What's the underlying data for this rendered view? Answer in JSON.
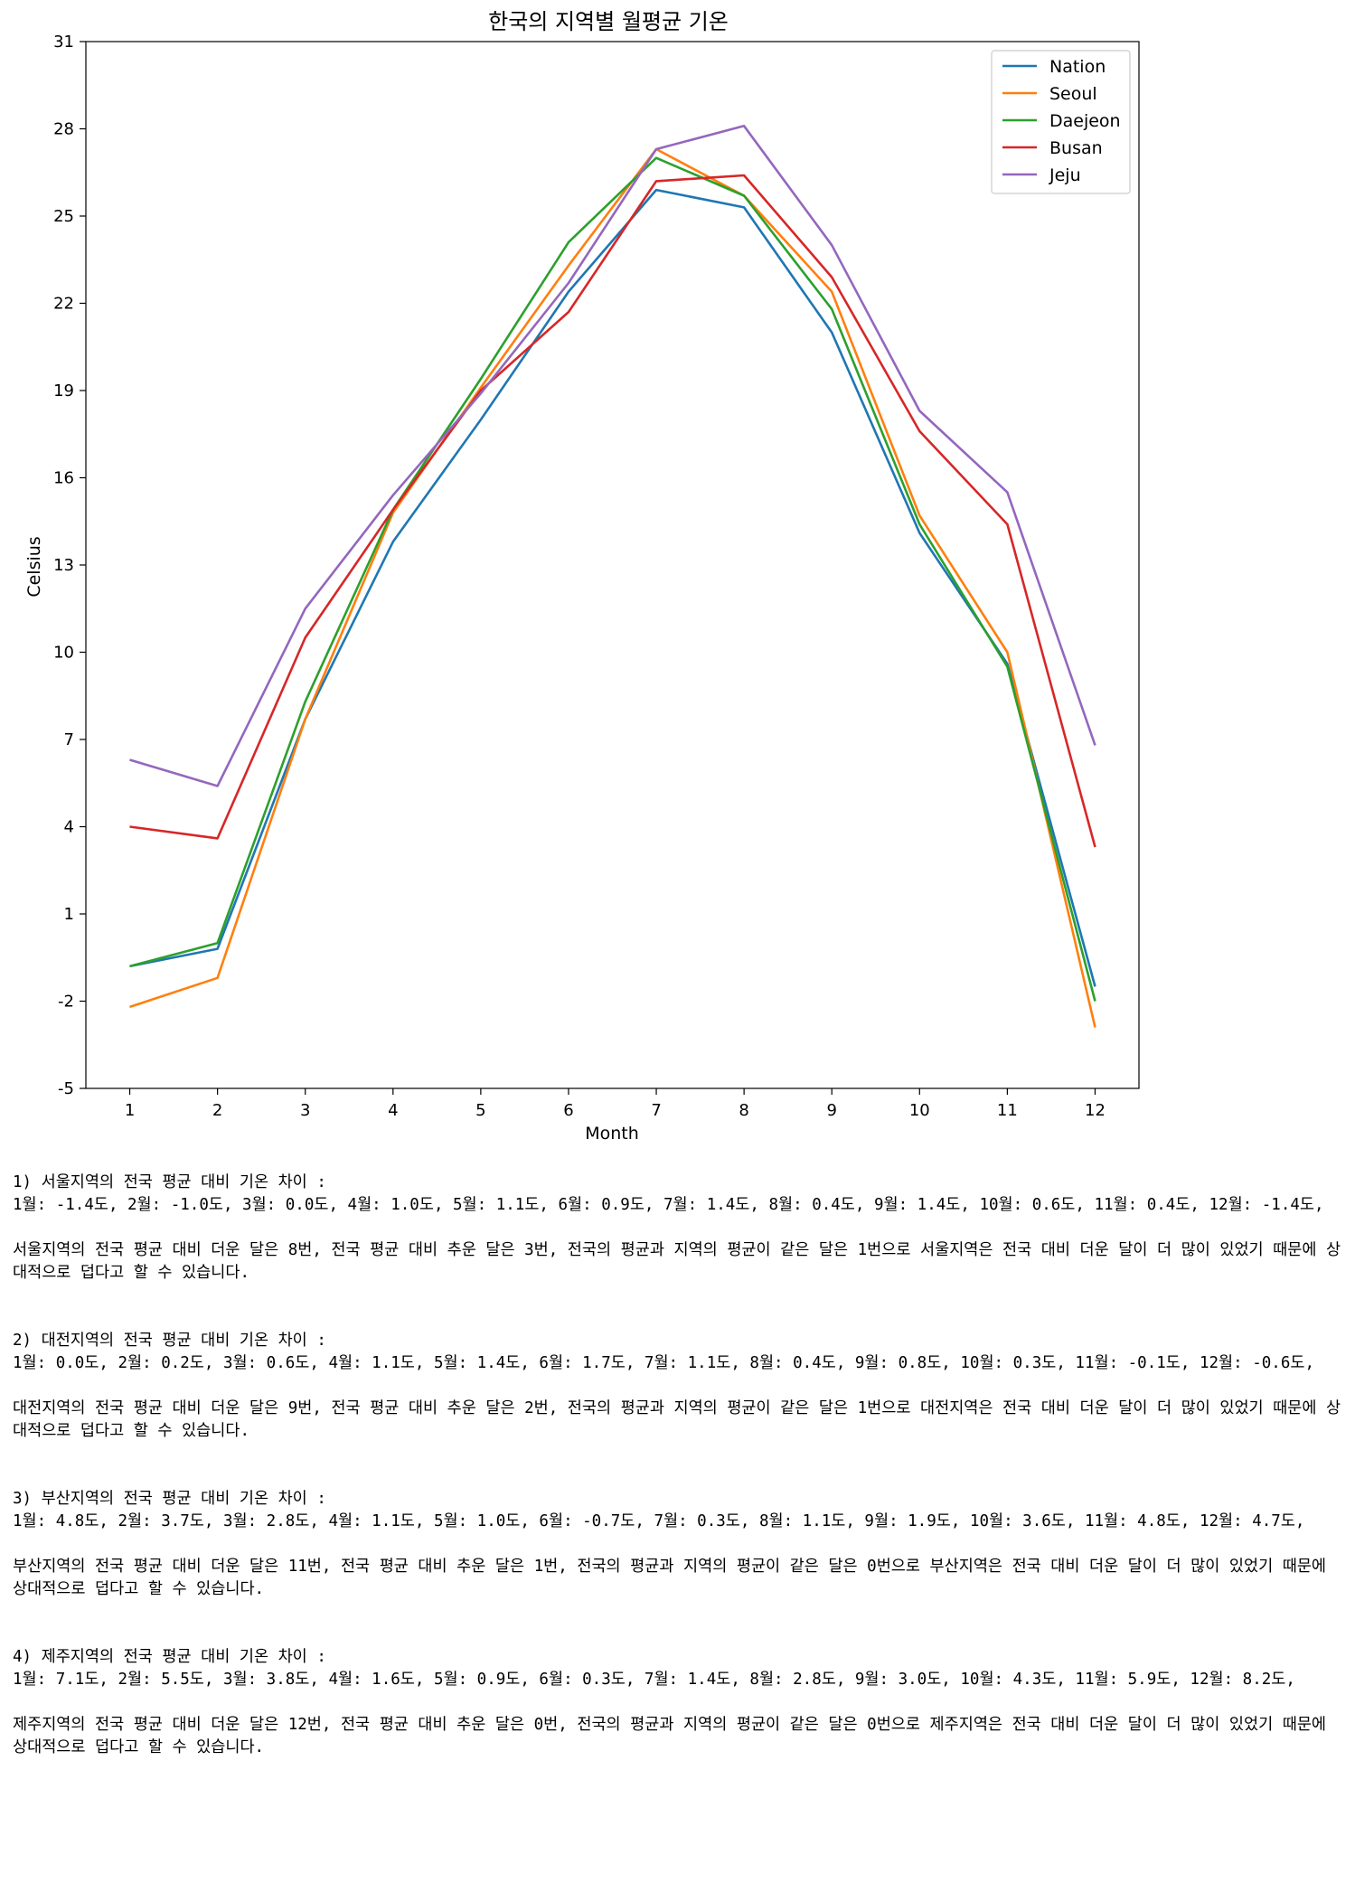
{
  "chart_data": {
    "type": "line",
    "title": "한국의 지역별 월평균 기온",
    "xlabel": "Month",
    "ylabel": "Celsius",
    "x": [
      1,
      2,
      3,
      4,
      5,
      6,
      7,
      8,
      9,
      10,
      11,
      12
    ],
    "xlim": [
      0.5,
      12.5
    ],
    "ylim": [
      -5,
      31
    ],
    "yticks": [
      -5,
      -2,
      1,
      4,
      7,
      10,
      13,
      16,
      19,
      22,
      25,
      28,
      31
    ],
    "xticks": [
      1,
      2,
      3,
      4,
      5,
      6,
      7,
      8,
      9,
      10,
      11,
      12
    ],
    "grid": false,
    "legend_position": "top-right",
    "series": [
      {
        "name": "Nation",
        "color": "#1f77b4",
        "values": [
          -0.8,
          -0.2,
          7.7,
          13.8,
          18.0,
          22.4,
          25.9,
          25.3,
          21.0,
          14.1,
          9.6,
          -1.5
        ]
      },
      {
        "name": "Seoul",
        "color": "#ff7f0e",
        "values": [
          -2.2,
          -1.2,
          7.7,
          14.8,
          19.1,
          23.3,
          27.3,
          25.7,
          22.4,
          14.7,
          10.0,
          -2.9
        ]
      },
      {
        "name": "Daejeon",
        "color": "#2ca02c",
        "values": [
          -0.8,
          0.0,
          8.3,
          14.9,
          19.4,
          24.1,
          27.0,
          25.7,
          21.8,
          14.4,
          9.5,
          -2.0
        ]
      },
      {
        "name": "Busan",
        "color": "#d62728",
        "values": [
          4.0,
          3.6,
          10.5,
          14.9,
          19.0,
          21.7,
          26.2,
          26.4,
          22.9,
          17.6,
          14.4,
          3.3
        ]
      },
      {
        "name": "Jeju",
        "color": "#9467bd",
        "values": [
          6.3,
          5.4,
          11.5,
          15.4,
          18.9,
          22.7,
          27.3,
          28.1,
          24.0,
          18.3,
          15.5,
          6.8
        ]
      }
    ]
  },
  "analysis": [
    {
      "title": "1) 서울지역의 전국 평균 대비 기온 차이 :",
      "values": "1월: -1.4도, 2월: -1.0도, 3월: 0.0도, 4월: 1.0도, 5월: 1.1도, 6월: 0.9도, 7월: 1.4도, 8월: 0.4도, 9월: 1.4도, 10월: 0.6도, 11월: 0.4도, 12월: -1.4도,",
      "summary": "서울지역의 전국 평균 대비 더운 달은 8번, 전국 평균 대비 추운 달은 3번, 전국의 평균과 지역의 평균이 같은 달은 1번으로 서울지역은 전국 대비 더운 달이 더 많이 있었기 때문에 상대적으로 덥다고 할 수 있습니다."
    },
    {
      "title": "2) 대전지역의 전국 평균 대비 기온 차이 :",
      "values": "1월: 0.0도, 2월: 0.2도, 3월: 0.6도, 4월: 1.1도, 5월: 1.4도, 6월: 1.7도, 7월: 1.1도, 8월: 0.4도, 9월: 0.8도, 10월: 0.3도, 11월: -0.1도, 12월: -0.6도,",
      "summary": "대전지역의 전국 평균 대비 더운 달은 9번, 전국 평균 대비 추운 달은 2번, 전국의 평균과 지역의 평균이 같은 달은 1번으로 대전지역은 전국 대비 더운 달이 더 많이 있었기 때문에 상대적으로 덥다고 할 수 있습니다."
    },
    {
      "title": "3) 부산지역의 전국 평균 대비 기온 차이 :",
      "values": "1월: 4.8도, 2월: 3.7도, 3월: 2.8도, 4월: 1.1도, 5월: 1.0도, 6월: -0.7도, 7월: 0.3도, 8월: 1.1도, 9월: 1.9도, 10월: 3.6도, 11월: 4.8도, 12월: 4.7도,",
      "summary": "부산지역의 전국 평균 대비 더운 달은 11번, 전국 평균 대비 추운 달은 1번, 전국의 평균과 지역의 평균이 같은 달은 0번으로 부산지역은 전국 대비 더운 달이 더 많이 있었기 때문에 상대적으로 덥다고 할 수 있습니다."
    },
    {
      "title": "4) 제주지역의 전국 평균 대비 기온 차이 :",
      "values": "1월: 7.1도, 2월: 5.5도, 3월: 3.8도, 4월: 1.6도, 5월: 0.9도, 6월: 0.3도, 7월: 1.4도, 8월: 2.8도, 9월: 3.0도, 10월: 4.3도, 11월: 5.9도, 12월: 8.2도,",
      "summary": "제주지역의 전국 평균 대비 더운 달은 12번, 전국 평균 대비 추운 달은 0번, 전국의 평균과 지역의 평균이 같은 달은 0번으로 제주지역은 전국 대비 더운 달이 더 많이 있었기 때문에 상대적으로 덥다고 할 수 있습니다."
    }
  ]
}
